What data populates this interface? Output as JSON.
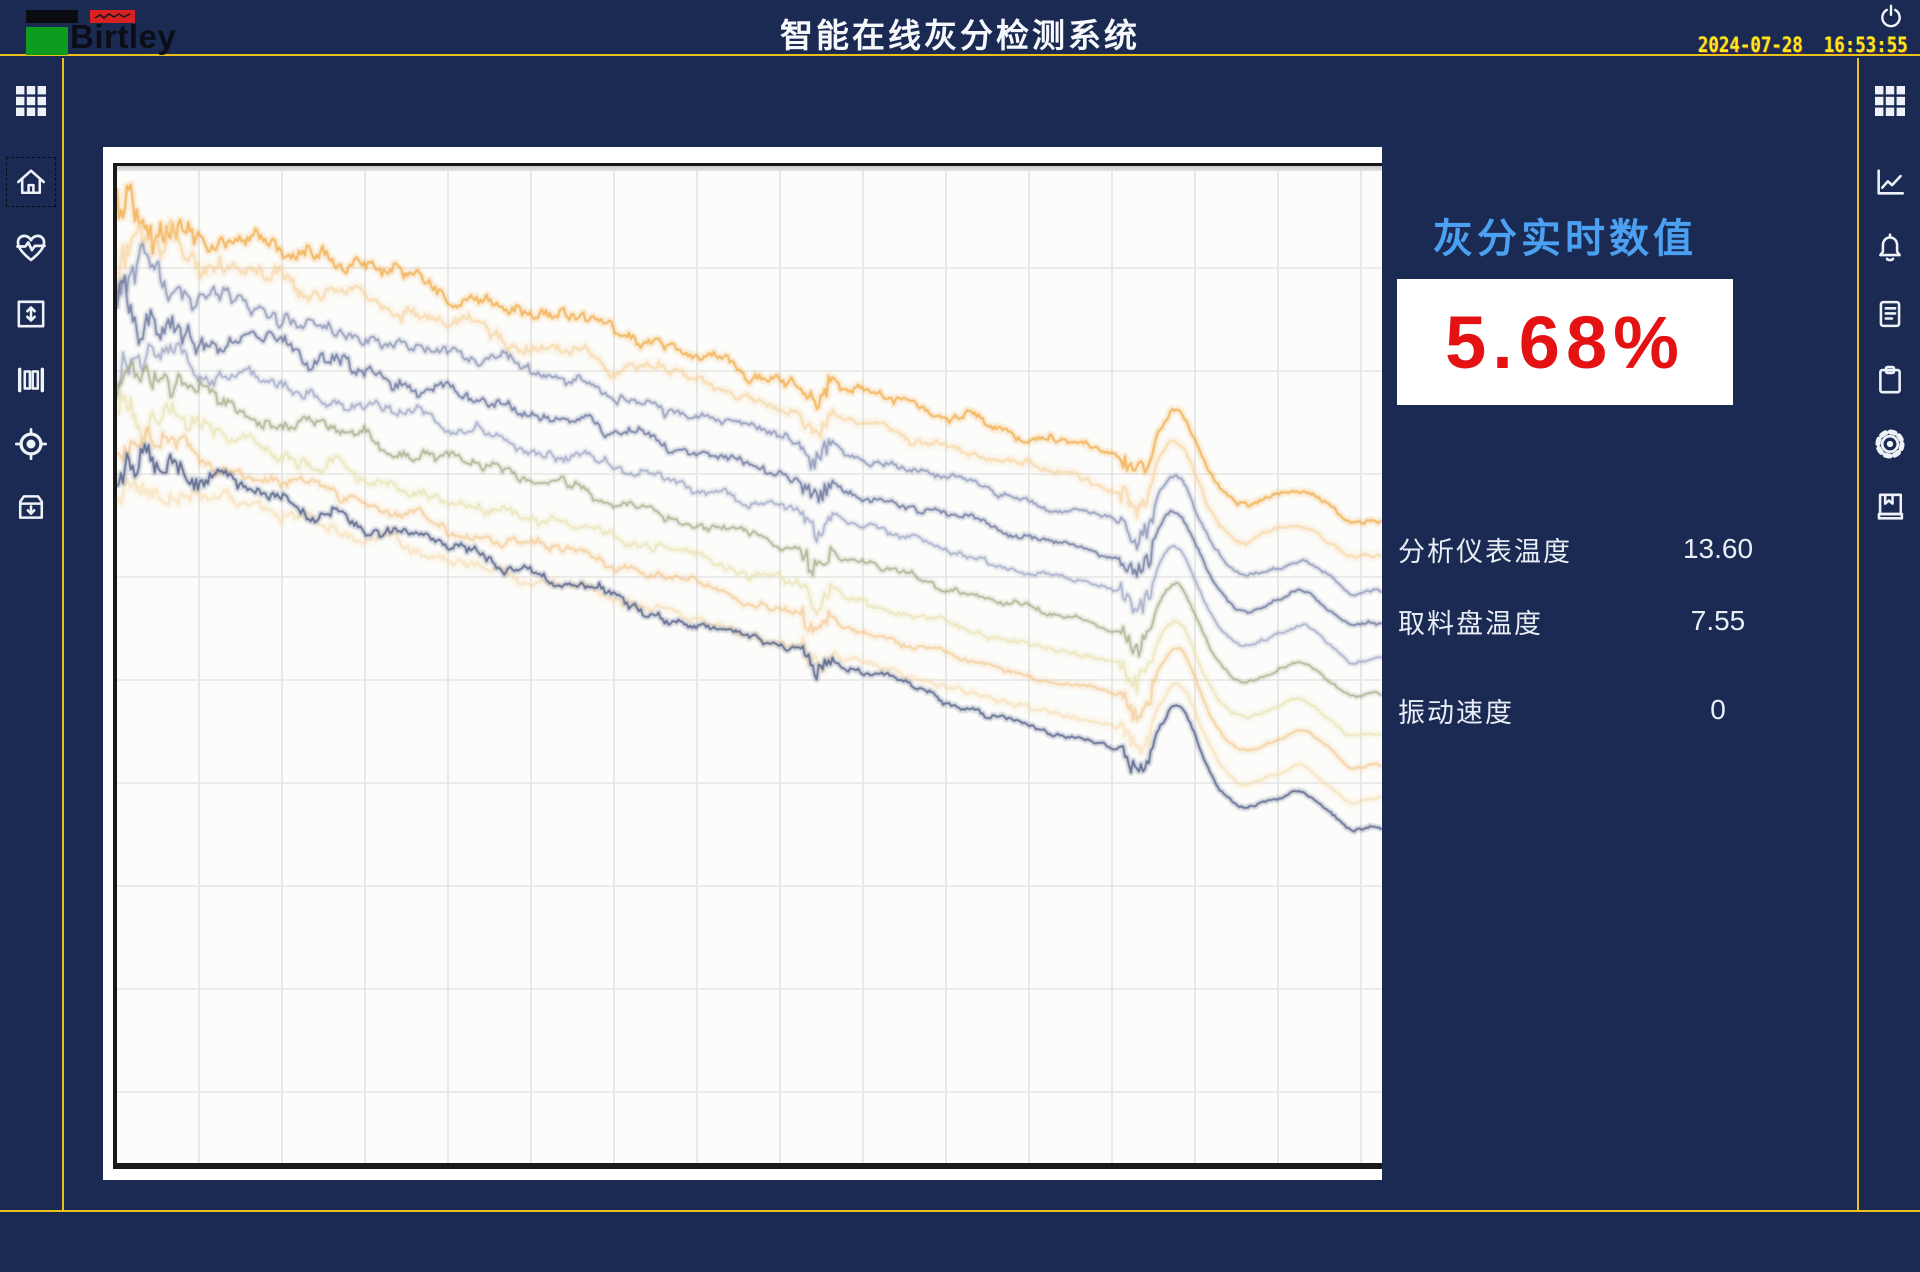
{
  "header": {
    "logo_text": "Birtley",
    "title": "智能在线灰分检测系统",
    "datetime": "2024-07-28  16:53:55"
  },
  "left_sidebar": {
    "items": [
      {
        "icon": "apps-grid-icon"
      },
      {
        "icon": "home-icon",
        "selected": true
      },
      {
        "icon": "heartbeat-icon"
      },
      {
        "icon": "vertical-adjust-icon"
      },
      {
        "icon": "columns-icon"
      },
      {
        "icon": "target-icon"
      },
      {
        "icon": "archive-in-icon"
      }
    ]
  },
  "right_sidebar": {
    "items": [
      {
        "icon": "apps-grid-icon"
      },
      {
        "icon": "trend-chart-icon"
      },
      {
        "icon": "alarm-bell-icon"
      },
      {
        "icon": "report-icon"
      },
      {
        "icon": "clipboard-icon"
      },
      {
        "icon": "settings-gear-icon"
      },
      {
        "icon": "logbook-icon"
      }
    ]
  },
  "panel": {
    "title": "灰分实时数值",
    "value": "5.68%",
    "readings": [
      {
        "label": "分析仪表温度",
        "value": "13.60"
      },
      {
        "label": "取料盘温度",
        "value": "7.55"
      },
      {
        "label": "振动速度",
        "value": "0"
      }
    ]
  },
  "colors": {
    "background_navy": "#1a2a52",
    "frame_yellow": "#ecbf1d",
    "accent_blue": "#4ba0f2",
    "value_red": "#e41212",
    "clock_yellow": "#ffe71a",
    "logo_green": "#0e9c1e",
    "logo_red": "#d92121",
    "chart_frame_black": "#191919"
  },
  "chart_data": {
    "type": "line",
    "title": "",
    "xlabel": "",
    "ylabel": "",
    "axes_labeled": false,
    "legend": false,
    "grid": true,
    "grid_spacing_px": {
      "x": 83,
      "y": 103
    },
    "plot_bg": "#fcfcfa",
    "x_range_norm": [
      0,
      1
    ],
    "y_range_norm": [
      0,
      1
    ],
    "description": "Ten noisy sensor trend lines drifting downward left-to-right across a white gridded panel; shared disturbances: small V-glitch at x=0.553, jagged zone then smooth hump near x=0.81-0.89, minor wiggles near the right edge; trace band spans y=0.04-0.36 at left and y=0.35-0.67 at right (video-feed style, no axis labels).",
    "events": {
      "glitch_x": 0.553,
      "spike_zone_x": 0.806,
      "bump_peak_x": 0.838,
      "bump_recover_x": 0.888,
      "minor_bump_x": 0.938
    },
    "series": [
      {
        "name": "line-1",
        "color": "#f0a843",
        "opacity": 0.75,
        "width": 2.4,
        "start": 0.045,
        "end": 0.355,
        "noise": 13,
        "seed": 3
      },
      {
        "name": "line-2",
        "color": "#f6cd92",
        "opacity": 0.55,
        "width": 3.0,
        "start": 0.075,
        "end": 0.39,
        "noise": 11,
        "seed": 5
      },
      {
        "name": "line-3",
        "color": "#8e98b8",
        "opacity": 0.85,
        "width": 2.0,
        "start": 0.105,
        "end": 0.425,
        "noise": 10,
        "seed": 7
      },
      {
        "name": "line-4",
        "color": "#737ea3",
        "opacity": 0.9,
        "width": 2.0,
        "start": 0.14,
        "end": 0.46,
        "noise": 10,
        "seed": 11
      },
      {
        "name": "line-5",
        "color": "#9aa3c1",
        "opacity": 0.75,
        "width": 2.0,
        "start": 0.175,
        "end": 0.495,
        "noise": 9,
        "seed": 13
      },
      {
        "name": "line-6",
        "color": "#9da37b",
        "opacity": 0.7,
        "width": 2.0,
        "start": 0.212,
        "end": 0.532,
        "noise": 9,
        "seed": 17
      },
      {
        "name": "line-7",
        "color": "#e8e0ae",
        "opacity": 0.65,
        "width": 2.6,
        "start": 0.248,
        "end": 0.568,
        "noise": 9,
        "seed": 19
      },
      {
        "name": "line-8",
        "color": "#f2c07b",
        "opacity": 0.55,
        "width": 2.6,
        "start": 0.272,
        "end": 0.6,
        "noise": 8,
        "seed": 23
      },
      {
        "name": "line-9",
        "color": "#f7d7a6",
        "opacity": 0.5,
        "width": 3.0,
        "start": 0.305,
        "end": 0.635,
        "noise": 8,
        "seed": 29
      },
      {
        "name": "line-10",
        "color": "#5f6a8e",
        "opacity": 0.95,
        "width": 2.0,
        "start": 0.285,
        "end": 0.665,
        "noise": 9,
        "seed": 31
      }
    ]
  }
}
